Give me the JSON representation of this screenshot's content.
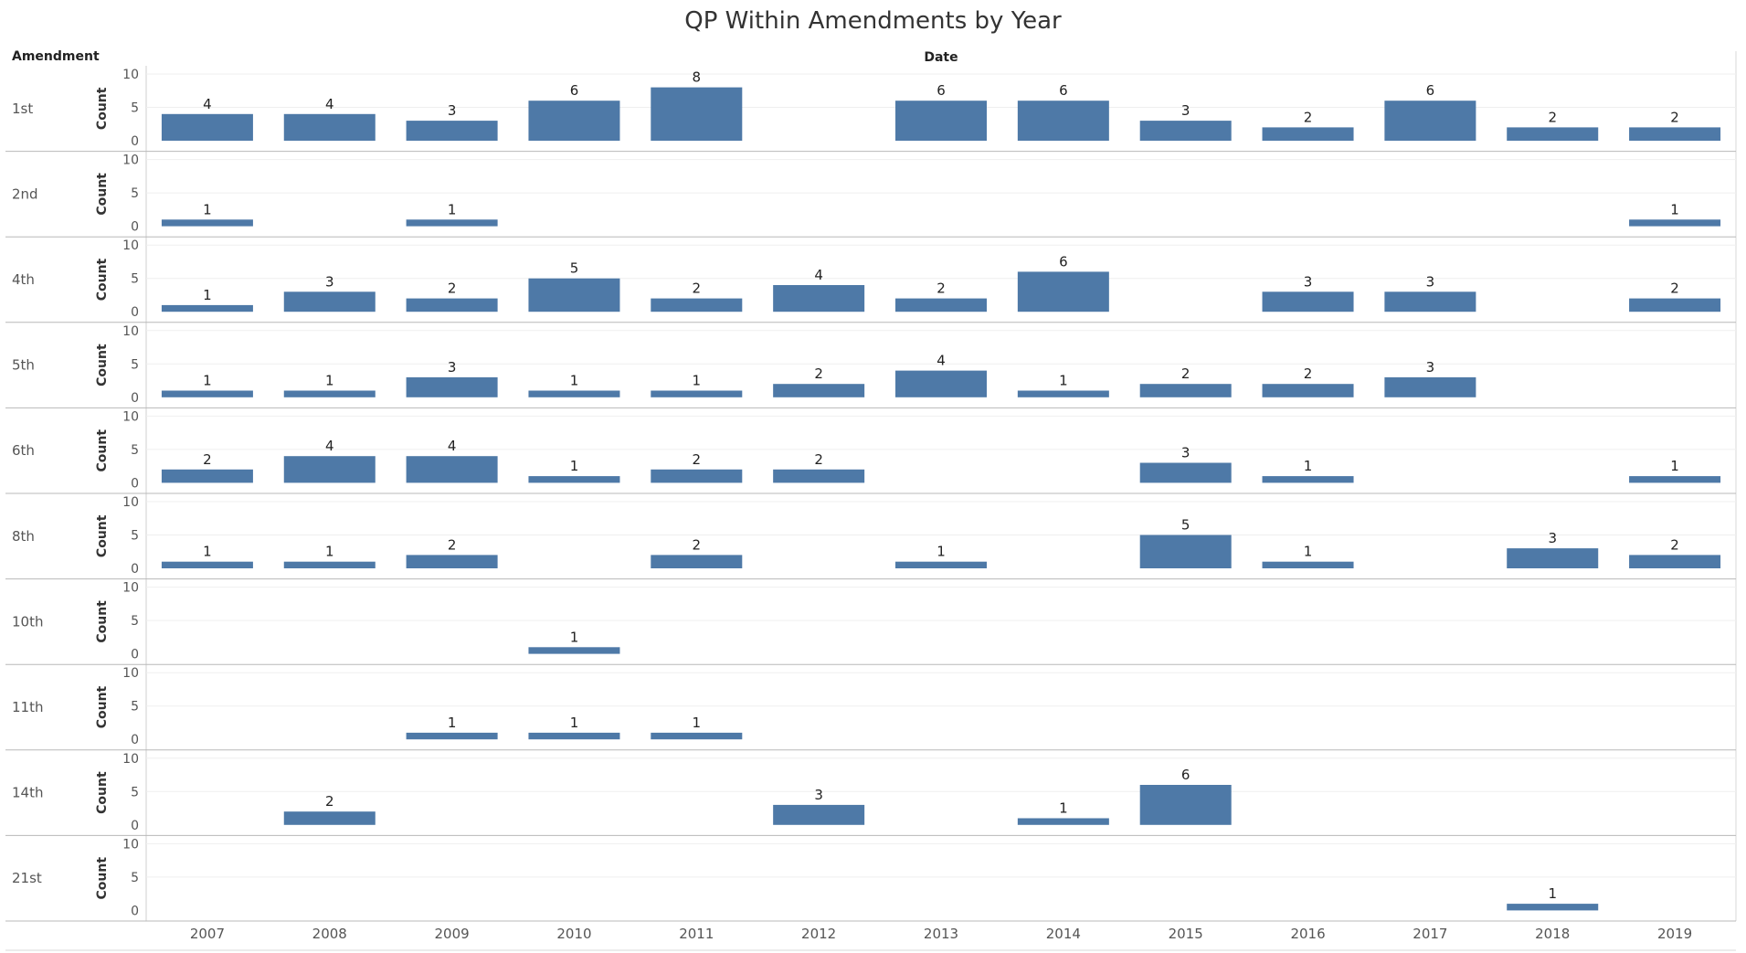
{
  "chart_data": {
    "type": "bar",
    "title": "QP Within Amendments by Year",
    "row_header": "Amendment",
    "column_header": "Date",
    "ylabel": "Count",
    "ylim": [
      0,
      10
    ],
    "yticks": [
      10,
      5,
      0
    ],
    "categories": [
      "2007",
      "2008",
      "2009",
      "2010",
      "2011",
      "2012",
      "2013",
      "2014",
      "2015",
      "2016",
      "2017",
      "2018",
      "2019"
    ],
    "bar_color": "#4e79a7",
    "grid": true,
    "series": [
      {
        "name": "1st",
        "values": [
          4,
          4,
          3,
          6,
          8,
          null,
          6,
          6,
          3,
          2,
          6,
          2,
          2
        ]
      },
      {
        "name": "2nd",
        "values": [
          1,
          null,
          1,
          null,
          null,
          null,
          null,
          null,
          null,
          null,
          null,
          null,
          1
        ]
      },
      {
        "name": "4th",
        "values": [
          1,
          3,
          2,
          5,
          2,
          4,
          2,
          6,
          null,
          3,
          3,
          null,
          2
        ]
      },
      {
        "name": "5th",
        "values": [
          1,
          1,
          3,
          1,
          1,
          2,
          4,
          1,
          2,
          2,
          3,
          null,
          null
        ]
      },
      {
        "name": "6th",
        "values": [
          2,
          4,
          4,
          1,
          2,
          2,
          null,
          null,
          3,
          1,
          null,
          null,
          1
        ]
      },
      {
        "name": "8th",
        "values": [
          1,
          1,
          2,
          null,
          2,
          null,
          1,
          null,
          5,
          1,
          null,
          3,
          2
        ]
      },
      {
        "name": "10th",
        "values": [
          null,
          null,
          null,
          1,
          null,
          null,
          null,
          null,
          null,
          null,
          null,
          null,
          null
        ]
      },
      {
        "name": "11th",
        "values": [
          null,
          null,
          1,
          1,
          1,
          null,
          null,
          null,
          null,
          null,
          null,
          null,
          null
        ]
      },
      {
        "name": "14th",
        "values": [
          null,
          2,
          null,
          null,
          null,
          3,
          null,
          1,
          6,
          null,
          null,
          null,
          null
        ]
      },
      {
        "name": "21st",
        "values": [
          null,
          null,
          null,
          null,
          null,
          null,
          null,
          null,
          null,
          null,
          null,
          1,
          null
        ]
      }
    ]
  }
}
